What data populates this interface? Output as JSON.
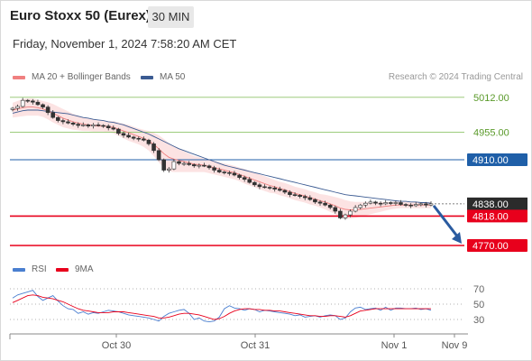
{
  "header": {
    "title": "Euro Stoxx 50 (Eurex)",
    "timeframe": "30 MIN",
    "datetime": "Friday, November 1, 2024 7:58:20 AM CET"
  },
  "legend": {
    "ma20": "MA 20 + Bollinger Bands",
    "ma50": "MA 50",
    "credit": "Research © 2024 Trading Central",
    "rsi": "RSI",
    "ma9": "9MA"
  },
  "colors": {
    "ma20": "#f08080",
    "bollinger_fill": "#fbdede",
    "ma50": "#3b5b92",
    "support": "#e8001c",
    "resistance": "#1f5fa8",
    "resistance_green": "#8fc46a",
    "candle": "#333333",
    "arrow": "#2a5ba0",
    "rsi": "#4a7fd0",
    "rsi_ma": "#e8001c"
  },
  "chart_data": [
    {
      "type": "line",
      "title": "Euro Stoxx 50 (Eurex) 30 MIN",
      "y_range": [
        4758,
        5020
      ],
      "x_ticks": [
        "Oct 30",
        "Oct 31",
        "Nov 1",
        "Nov 9"
      ],
      "levels": [
        {
          "label": "5012.00",
          "value": 5012,
          "style": "green"
        },
        {
          "label": "4955.00",
          "value": 4955,
          "style": "green"
        },
        {
          "label": "4910.00",
          "value": 4910,
          "style": "blue"
        },
        {
          "label": "4838.00",
          "value": 4838,
          "style": "price"
        },
        {
          "label": "4818.00",
          "value": 4818,
          "style": "red"
        },
        {
          "label": "4770.00",
          "value": 4770,
          "style": "red"
        }
      ],
      "price_series": [
        4994,
        4997,
        5007,
        5006,
        5004,
        5000,
        4996,
        4987,
        4979,
        4974,
        4972,
        4970,
        4968,
        4966,
        4967,
        4965,
        4967,
        4966,
        4965,
        4962,
        4960,
        4953,
        4950,
        4947,
        4945,
        4944,
        4942,
        4936,
        4925,
        4910,
        4893,
        4895,
        4907,
        4904,
        4904,
        4902,
        4900,
        4901,
        4900,
        4897,
        4893,
        4890,
        4889,
        4888,
        4885,
        4881,
        4878,
        4873,
        4869,
        4866,
        4865,
        4864,
        4862,
        4860,
        4857,
        4853,
        4852,
        4850,
        4848,
        4845,
        4841,
        4839,
        4836,
        4832,
        4826,
        4815,
        4820,
        4826,
        4832,
        4836,
        4839,
        4841,
        4839,
        4838,
        4840,
        4839,
        4840,
        4837,
        4836,
        4835,
        4837,
        4838,
        4836,
        4838
      ],
      "ma20_series": [
        4991,
        4993,
        4995,
        4996,
        4996,
        4995,
        4993,
        4990,
        4986,
        4982,
        4978,
        4975,
        4972,
        4970,
        4968,
        4967,
        4966,
        4965,
        4965,
        4964,
        4963,
        4960,
        4957,
        4954,
        4951,
        4948,
        4945,
        4941,
        4935,
        4928,
        4920,
        4914,
        4911,
        4909,
        4907,
        4905,
        4903,
        4902,
        4901,
        4899,
        4897,
        4895,
        4893,
        4891,
        4889,
        4886,
        4883,
        4880,
        4877,
        4874,
        4871,
        4868,
        4866,
        4863,
        4861,
        4858,
        4855,
        4853,
        4851,
        4848,
        4846,
        4843,
        4841,
        4838,
        4835,
        4831,
        4829,
        4828,
        4828,
        4829,
        4830,
        4831,
        4832,
        4833,
        4834,
        4835,
        4836,
        4836,
        4836,
        4836,
        4836,
        4836,
        4836,
        4836
      ],
      "ma50_series": [
        4986,
        4988,
        4990,
        4991,
        4991,
        4991,
        4990,
        4989,
        4988,
        4987,
        4986,
        4985,
        4983,
        4981,
        4979,
        4978,
        4976,
        4975,
        4974,
        4972,
        4971,
        4969,
        4967,
        4964,
        4961,
        4958,
        4955,
        4952,
        4948,
        4944,
        4940,
        4936,
        4932,
        4928,
        4925,
        4922,
        4919,
        4916,
        4913,
        4910,
        4907,
        4904,
        4901,
        4899,
        4897,
        4895,
        4893,
        4891,
        4889,
        4887,
        4885,
        4883,
        4881,
        4879,
        4877,
        4875,
        4873,
        4871,
        4869,
        4867,
        4865,
        4863,
        4861,
        4859,
        4857,
        4855,
        4853,
        4852,
        4851,
        4850,
        4849,
        4848,
        4847,
        4846,
        4845,
        4844,
        4843,
        4842,
        4842,
        4841,
        4841,
        4840,
        4840,
        4839
      ],
      "bollinger_width": [
        12,
        13,
        14,
        14,
        14,
        13,
        13,
        14,
        15,
        15,
        15,
        14,
        13,
        12,
        11,
        10,
        10,
        9,
        9,
        9,
        10,
        11,
        12,
        13,
        13,
        13,
        14,
        16,
        19,
        22,
        24,
        23,
        21,
        19,
        17,
        15,
        13,
        12,
        11,
        11,
        11,
        11,
        11,
        11,
        11,
        11,
        12,
        12,
        12,
        12,
        12,
        12,
        11,
        11,
        11,
        11,
        11,
        11,
        11,
        11,
        11,
        11,
        12,
        13,
        14,
        16,
        15,
        14,
        13,
        12,
        11,
        10,
        9,
        8,
        7,
        6,
        6,
        5,
        5,
        5,
        5,
        5,
        5,
        5
      ],
      "projection": {
        "from": 4838,
        "to": 4770
      }
    },
    {
      "type": "line",
      "title": "RSI",
      "y_range": [
        20,
        80
      ],
      "levels": [
        {
          "label": "70",
          "value": 70
        },
        {
          "label": "50",
          "value": 50
        },
        {
          "label": "30",
          "value": 30
        }
      ],
      "rsi_series": [
        58,
        62,
        64,
        66,
        68,
        60,
        55,
        58,
        61,
        54,
        48,
        44,
        43,
        38,
        40,
        37,
        39,
        38,
        40,
        42,
        41,
        40,
        38,
        36,
        35,
        34,
        33,
        32,
        30,
        28,
        34,
        38,
        40,
        42,
        43,
        38,
        30,
        32,
        28,
        27,
        28,
        33,
        44,
        48,
        45,
        44,
        42,
        44,
        43,
        40,
        42,
        41,
        40,
        39,
        38,
        37,
        35,
        36,
        33,
        34,
        35,
        33,
        35,
        36,
        35,
        30,
        32,
        40,
        45,
        46,
        43,
        44,
        45,
        42,
        46,
        42,
        45,
        45,
        44,
        44,
        45,
        43,
        44,
        42
      ],
      "rsi_ma_series": [
        52,
        55,
        58,
        61,
        62,
        61,
        59,
        58,
        57,
        55,
        53,
        50,
        47,
        44,
        42,
        41,
        40,
        39,
        39,
        39,
        40,
        40,
        40,
        39,
        38,
        37,
        36,
        35,
        34,
        32,
        32,
        33,
        35,
        37,
        38,
        38,
        37,
        36,
        34,
        32,
        30,
        31,
        34,
        38,
        41,
        43,
        44,
        44,
        43,
        43,
        42,
        42,
        41,
        41,
        40,
        39,
        38,
        37,
        36,
        35,
        35,
        34,
        34,
        35,
        35,
        34,
        33,
        35,
        38,
        41,
        42,
        43,
        44,
        44,
        44,
        44,
        44,
        44,
        44,
        44,
        44,
        44,
        44,
        44
      ]
    }
  ]
}
